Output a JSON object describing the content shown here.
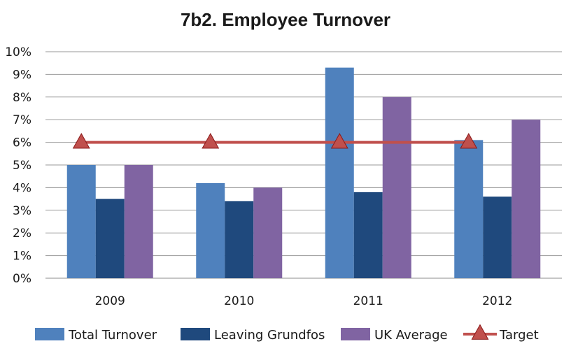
{
  "chart_data": {
    "type": "bar",
    "title": "7b2. Employee Turnover",
    "xlabel": "",
    "ylabel": "",
    "categories": [
      "2009",
      "2010",
      "2011",
      "2012"
    ],
    "ylim": [
      0,
      10
    ],
    "y_ticks": [
      {
        "value": 0,
        "label": "0%"
      },
      {
        "value": 1,
        "label": "1%"
      },
      {
        "value": 2,
        "label": "2%"
      },
      {
        "value": 3,
        "label": "3%"
      },
      {
        "value": 4,
        "label": "4%"
      },
      {
        "value": 5,
        "label": "5%"
      },
      {
        "value": 6,
        "label": "6%"
      },
      {
        "value": 7,
        "label": "7%"
      },
      {
        "value": 8,
        "label": "8%"
      },
      {
        "value": 9,
        "label": "9%"
      },
      {
        "value": 10,
        "label": "10%"
      }
    ],
    "grid": true,
    "legend_position": "bottom",
    "series": [
      {
        "name": "Total Turnover",
        "kind": "bar",
        "color": "#4f81bd",
        "values": [
          5.0,
          4.2,
          9.3,
          6.1
        ]
      },
      {
        "name": "Leaving Grundfos",
        "kind": "bar",
        "color": "#1f497d",
        "values": [
          3.5,
          3.4,
          3.8,
          3.6
        ]
      },
      {
        "name": "UK Average",
        "kind": "bar",
        "color": "#8064a2",
        "values": [
          5.0,
          4.0,
          8.0,
          7.0
        ]
      },
      {
        "name": "Target",
        "kind": "line",
        "marker": "triangle",
        "color": "#c0504d",
        "values": [
          6,
          6,
          6,
          6
        ]
      }
    ]
  }
}
